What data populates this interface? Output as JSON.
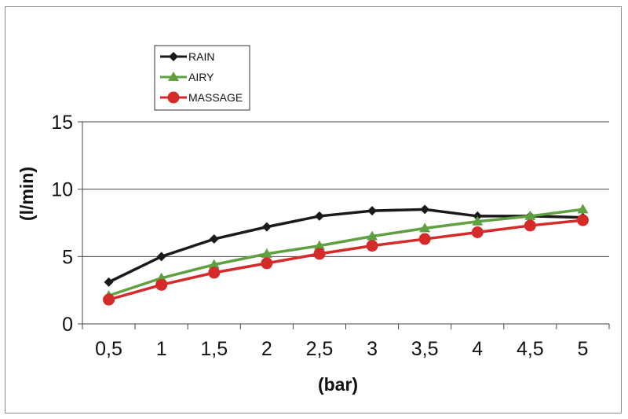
{
  "chart_data": {
    "type": "line",
    "title": "",
    "xlabel": "(bar)",
    "ylabel": "(l/min)",
    "categories": [
      "0,5",
      "1",
      "1,5",
      "2",
      "2,5",
      "3",
      "3,5",
      "4",
      "4,5",
      "5"
    ],
    "yticks": [
      "0",
      "5",
      "10",
      "15"
    ],
    "ylim": [
      0,
      15
    ],
    "grid": "horizontal",
    "legend": "top-left",
    "series": [
      {
        "name": "RAIN",
        "color": "#1a1a1a",
        "marker": "diamond",
        "values": [
          3.1,
          5.0,
          6.3,
          7.2,
          8.0,
          8.4,
          8.5,
          8.0,
          8.0,
          7.9
        ]
      },
      {
        "name": "AIRY",
        "color": "#5fa040",
        "marker": "triangle",
        "values": [
          2.1,
          3.4,
          4.4,
          5.2,
          5.8,
          6.5,
          7.1,
          7.6,
          8.0,
          8.5
        ]
      },
      {
        "name": "MASSAGE",
        "color": "#d42a2a",
        "marker": "circle",
        "values": [
          1.8,
          2.9,
          3.8,
          4.5,
          5.2,
          5.8,
          6.3,
          6.8,
          7.3,
          7.7
        ]
      }
    ]
  }
}
